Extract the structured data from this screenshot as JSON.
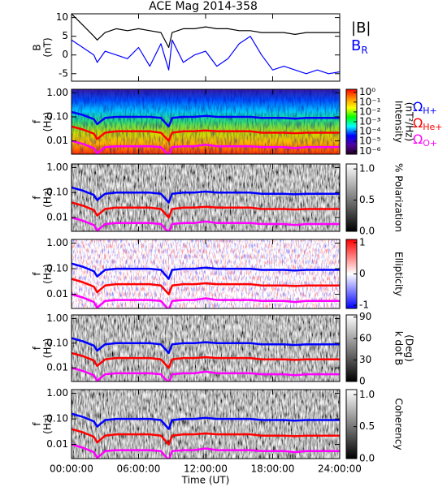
{
  "chart_data": [
    {
      "type": "line",
      "title": "ACE Mag 2014-358",
      "ylabel": [
        "B",
        "(nT)"
      ],
      "x": [
        0,
        1,
        2,
        2.3,
        3,
        4,
        5,
        6,
        7,
        8,
        8.7,
        9,
        10,
        11,
        12,
        13,
        14,
        15,
        16,
        17,
        18,
        19,
        20,
        21,
        22,
        23,
        24
      ],
      "xlim": [
        0,
        24
      ],
      "ylim": [
        -7,
        11
      ],
      "yticks": [
        -5,
        0,
        5,
        10
      ],
      "legend": "right-outside",
      "series": [
        {
          "name": "|B|",
          "color": "#000000",
          "values": [
            11,
            8,
            5,
            4,
            6,
            7,
            6.5,
            7,
            6.5,
            6,
            2,
            6,
            7,
            7,
            7.5,
            7,
            7,
            6.5,
            6.5,
            6,
            6,
            6,
            5.5,
            6,
            6,
            6,
            6
          ]
        },
        {
          "name": "B",
          "subscript": "R",
          "color": "#0000ff",
          "values": [
            4,
            2,
            0,
            -2,
            1,
            0,
            -1,
            2,
            -3,
            3,
            -4,
            4,
            -2,
            0,
            1,
            -3,
            -1,
            3,
            5,
            0,
            -4,
            -3,
            -4,
            -5,
            -4,
            -5,
            -4.5
          ]
        }
      ]
    },
    {
      "type": "line",
      "log": true,
      "ylabel": [
        "f",
        "(Hz)"
      ],
      "x": [
        0,
        1,
        2,
        2.3,
        3,
        4,
        5,
        6,
        7,
        8,
        8.7,
        9,
        10,
        11,
        12,
        13,
        14,
        15,
        16,
        17,
        18,
        19,
        20,
        21,
        22,
        23,
        24
      ],
      "xlim": [
        0,
        24
      ],
      "ylim": [
        0.0028,
        1.4
      ],
      "yticks": [
        {
          "value": 0.01,
          "label": "0.01"
        },
        {
          "value": 0.1,
          "label": "0.10"
        },
        {
          "value": 1,
          "label": "1.00"
        }
      ],
      "legend": "right-outside",
      "colorbar": {
        "colormap": "rainbow",
        "log": true,
        "lim": [
          5e-07,
          2
        ],
        "label": [
          "Intensity",
          "(nT²/Hz)"
        ],
        "ticks": [
          {
            "value": 1,
            "label": "10⁰"
          },
          {
            "value": 0.1,
            "label": "10⁻¹"
          },
          {
            "value": 0.01,
            "label": "10⁻²"
          },
          {
            "value": 0.001,
            "label": "10⁻³"
          },
          {
            "value": 0.0001,
            "label": "10⁻⁴"
          },
          {
            "value": 1e-05,
            "label": "10⁻⁵"
          },
          {
            "value": 1e-06,
            "label": "10⁻⁶"
          }
        ]
      },
      "series": [
        {
          "name": "Ω",
          "subscript": "H+",
          "color": "#0000ff",
          "values": [
            0.16,
            0.12,
            0.08,
            0.05,
            0.09,
            0.1,
            0.1,
            0.1,
            0.1,
            0.09,
            0.04,
            0.09,
            0.1,
            0.1,
            0.11,
            0.1,
            0.1,
            0.1,
            0.1,
            0.09,
            0.09,
            0.09,
            0.085,
            0.09,
            0.09,
            0.09,
            0.09
          ]
        },
        {
          "name": "Ω",
          "subscript": "He+",
          "color": "#ff0000",
          "values": [
            0.04,
            0.03,
            0.02,
            0.012,
            0.022,
            0.025,
            0.025,
            0.025,
            0.025,
            0.022,
            0.01,
            0.022,
            0.025,
            0.025,
            0.027,
            0.025,
            0.025,
            0.025,
            0.025,
            0.022,
            0.022,
            0.022,
            0.021,
            0.022,
            0.022,
            0.022,
            0.022
          ]
        },
        {
          "name": "Ω",
          "subscript": "O+",
          "color": "#ff00ff",
          "values": [
            0.01,
            0.0075,
            0.005,
            0.003,
            0.0055,
            0.006,
            0.006,
            0.006,
            0.006,
            0.0055,
            0.0025,
            0.0055,
            0.006,
            0.006,
            0.007,
            0.006,
            0.006,
            0.006,
            0.006,
            0.0055,
            0.0055,
            0.0055,
            0.005,
            0.0055,
            0.0055,
            0.0055,
            0.0055
          ]
        }
      ]
    },
    {
      "type": "line",
      "log": true,
      "ylabel": [
        "f",
        "(Hz)"
      ],
      "x": [
        0,
        1,
        2,
        2.3,
        3,
        4,
        5,
        6,
        7,
        8,
        8.7,
        9,
        10,
        11,
        12,
        13,
        14,
        15,
        16,
        17,
        18,
        19,
        20,
        21,
        22,
        23,
        24
      ],
      "xlim": [
        0,
        24
      ],
      "ylim": [
        0.0028,
        1.4
      ],
      "yticks": [
        {
          "value": 0.01,
          "label": "0.01"
        },
        {
          "value": 0.1,
          "label": "0.10"
        },
        {
          "value": 1,
          "label": "1.00"
        }
      ],
      "colorbar": {
        "colormap": "gray",
        "lim": [
          0,
          1.08
        ],
        "label": [
          "% Polarization"
        ],
        "ticks": [
          {
            "value": 0,
            "label": "0.0"
          },
          0.5,
          {
            "value": 1,
            "label": "1.0"
          }
        ]
      },
      "series": [
        {
          "color": "#0000ff",
          "values": [
            0.16,
            0.12,
            0.08,
            0.05,
            0.09,
            0.1,
            0.1,
            0.1,
            0.1,
            0.09,
            0.04,
            0.09,
            0.1,
            0.1,
            0.11,
            0.1,
            0.1,
            0.1,
            0.1,
            0.09,
            0.09,
            0.09,
            0.085,
            0.09,
            0.09,
            0.09,
            0.09
          ]
        },
        {
          "color": "#ff0000",
          "values": [
            0.04,
            0.03,
            0.02,
            0.012,
            0.022,
            0.025,
            0.025,
            0.025,
            0.025,
            0.022,
            0.01,
            0.022,
            0.025,
            0.025,
            0.027,
            0.025,
            0.025,
            0.025,
            0.025,
            0.022,
            0.022,
            0.022,
            0.021,
            0.022,
            0.022,
            0.022,
            0.022
          ]
        },
        {
          "color": "#ff00ff",
          "values": [
            0.01,
            0.0075,
            0.005,
            0.003,
            0.0055,
            0.006,
            0.006,
            0.006,
            0.006,
            0.0055,
            0.0025,
            0.0055,
            0.006,
            0.006,
            0.007,
            0.006,
            0.006,
            0.006,
            0.006,
            0.0055,
            0.0055,
            0.0055,
            0.005,
            0.0055,
            0.0055,
            0.0055,
            0.0055
          ]
        }
      ]
    },
    {
      "type": "line",
      "log": true,
      "ylabel": [
        "f",
        "(Hz)"
      ],
      "x": [
        0,
        1,
        2,
        2.3,
        3,
        4,
        5,
        6,
        7,
        8,
        8.7,
        9,
        10,
        11,
        12,
        13,
        14,
        15,
        16,
        17,
        18,
        19,
        20,
        21,
        22,
        23,
        24
      ],
      "xlim": [
        0,
        24
      ],
      "ylim": [
        0.0028,
        1.4
      ],
      "yticks": [
        {
          "value": 0.01,
          "label": "0.01"
        },
        {
          "value": 0.1,
          "label": "0.10"
        },
        {
          "value": 1,
          "label": "1.00"
        }
      ],
      "colorbar": {
        "colormap": "bwr",
        "lim": [
          -1.1,
          1.1
        ],
        "label": [
          "Ellipticity"
        ],
        "ticks": [
          -1,
          0,
          1
        ]
      },
      "series": [
        {
          "color": "#0000ff",
          "values": [
            0.16,
            0.12,
            0.08,
            0.05,
            0.09,
            0.1,
            0.1,
            0.1,
            0.1,
            0.09,
            0.04,
            0.09,
            0.1,
            0.1,
            0.11,
            0.1,
            0.1,
            0.1,
            0.1,
            0.09,
            0.09,
            0.09,
            0.085,
            0.09,
            0.09,
            0.09,
            0.09
          ]
        },
        {
          "color": "#ff0000",
          "values": [
            0.04,
            0.03,
            0.02,
            0.012,
            0.022,
            0.025,
            0.025,
            0.025,
            0.025,
            0.022,
            0.01,
            0.022,
            0.025,
            0.025,
            0.027,
            0.025,
            0.025,
            0.025,
            0.025,
            0.022,
            0.022,
            0.022,
            0.021,
            0.022,
            0.022,
            0.022,
            0.022
          ]
        },
        {
          "color": "#ff00ff",
          "values": [
            0.01,
            0.0075,
            0.005,
            0.003,
            0.0055,
            0.006,
            0.006,
            0.006,
            0.006,
            0.0055,
            0.0025,
            0.0055,
            0.006,
            0.006,
            0.007,
            0.006,
            0.006,
            0.006,
            0.006,
            0.0055,
            0.0055,
            0.0055,
            0.005,
            0.0055,
            0.0055,
            0.0055,
            0.0055
          ]
        }
      ]
    },
    {
      "type": "line",
      "log": true,
      "ylabel": [
        "f",
        "(Hz)"
      ],
      "x": [
        0,
        1,
        2,
        2.3,
        3,
        4,
        5,
        6,
        7,
        8,
        8.7,
        9,
        10,
        11,
        12,
        13,
        14,
        15,
        16,
        17,
        18,
        19,
        20,
        21,
        22,
        23,
        24
      ],
      "xlim": [
        0,
        24
      ],
      "ylim": [
        0.0028,
        1.4
      ],
      "yticks": [
        {
          "value": 0.01,
          "label": "0.01"
        },
        {
          "value": 0.1,
          "label": "0.10"
        },
        {
          "value": 1,
          "label": "1.00"
        }
      ],
      "colorbar": {
        "colormap": "gray",
        "lim": [
          0,
          93
        ],
        "label": [
          "k dot B",
          "(Deg)"
        ],
        "ticks": [
          0,
          30,
          60,
          90
        ]
      },
      "series": [
        {
          "color": "#0000ff",
          "values": [
            0.16,
            0.12,
            0.08,
            0.05,
            0.09,
            0.1,
            0.1,
            0.1,
            0.1,
            0.09,
            0.04,
            0.09,
            0.1,
            0.1,
            0.11,
            0.1,
            0.1,
            0.1,
            0.1,
            0.09,
            0.09,
            0.09,
            0.085,
            0.09,
            0.09,
            0.09,
            0.09
          ]
        },
        {
          "color": "#ff0000",
          "values": [
            0.04,
            0.03,
            0.02,
            0.012,
            0.022,
            0.025,
            0.025,
            0.025,
            0.025,
            0.022,
            0.01,
            0.022,
            0.025,
            0.025,
            0.027,
            0.025,
            0.025,
            0.025,
            0.025,
            0.022,
            0.022,
            0.022,
            0.021,
            0.022,
            0.022,
            0.022,
            0.022
          ]
        },
        {
          "color": "#ff00ff",
          "values": [
            0.01,
            0.0075,
            0.005,
            0.003,
            0.0055,
            0.006,
            0.006,
            0.006,
            0.006,
            0.0055,
            0.0025,
            0.0055,
            0.006,
            0.006,
            0.007,
            0.006,
            0.006,
            0.006,
            0.006,
            0.0055,
            0.0055,
            0.0055,
            0.005,
            0.0055,
            0.0055,
            0.0055,
            0.0055
          ]
        }
      ]
    },
    {
      "type": "line",
      "log": true,
      "ylabel": [
        "f",
        "(Hz)"
      ],
      "x": [
        0,
        1,
        2,
        2.3,
        3,
        4,
        5,
        6,
        7,
        8,
        8.7,
        9,
        10,
        11,
        12,
        13,
        14,
        15,
        16,
        17,
        18,
        19,
        20,
        21,
        22,
        23,
        24
      ],
      "xlim": [
        0,
        24
      ],
      "ylim": [
        0.0028,
        1.4
      ],
      "yticks": [
        {
          "value": 0.01,
          "label": "0.01"
        },
        {
          "value": 0.1,
          "label": "0.10"
        },
        {
          "value": 1,
          "label": "1.00"
        }
      ],
      "colorbar": {
        "colormap": "gray",
        "lim": [
          0,
          1.08
        ],
        "label": [
          "Coherency"
        ],
        "ticks": [
          {
            "value": 0,
            "label": "0.0"
          },
          0.5,
          {
            "value": 1,
            "label": "1.0"
          }
        ]
      },
      "xlabel": "Time (UT)",
      "xticks": [
        {
          "value": 0,
          "label": "00:00:00"
        },
        {
          "value": 6,
          "label": "06:00:00"
        },
        {
          "value": 12,
          "label": "12:00:00"
        },
        {
          "value": 18,
          "label": "18:00:00"
        },
        {
          "value": 24,
          "label": "24:00:00"
        }
      ],
      "series": [
        {
          "color": "#0000ff",
          "values": [
            0.16,
            0.12,
            0.08,
            0.05,
            0.09,
            0.1,
            0.1,
            0.1,
            0.1,
            0.09,
            0.04,
            0.09,
            0.1,
            0.1,
            0.11,
            0.1,
            0.1,
            0.1,
            0.1,
            0.09,
            0.09,
            0.09,
            0.085,
            0.09,
            0.09,
            0.09,
            0.09
          ]
        },
        {
          "color": "#ff0000",
          "values": [
            0.04,
            0.03,
            0.02,
            0.012,
            0.022,
            0.025,
            0.025,
            0.025,
            0.025,
            0.022,
            0.01,
            0.022,
            0.025,
            0.025,
            0.027,
            0.025,
            0.025,
            0.025,
            0.025,
            0.022,
            0.022,
            0.022,
            0.021,
            0.022,
            0.022,
            0.022,
            0.022
          ]
        },
        {
          "color": "#ff00ff",
          "values": [
            0.01,
            0.0075,
            0.005,
            0.003,
            0.0055,
            0.006,
            0.006,
            0.006,
            0.006,
            0.0055,
            0.0025,
            0.0055,
            0.006,
            0.006,
            0.007,
            0.006,
            0.006,
            0.006,
            0.006,
            0.0055,
            0.0055,
            0.0055,
            0.005,
            0.0055,
            0.0055,
            0.0055,
            0.0055
          ]
        }
      ]
    }
  ]
}
